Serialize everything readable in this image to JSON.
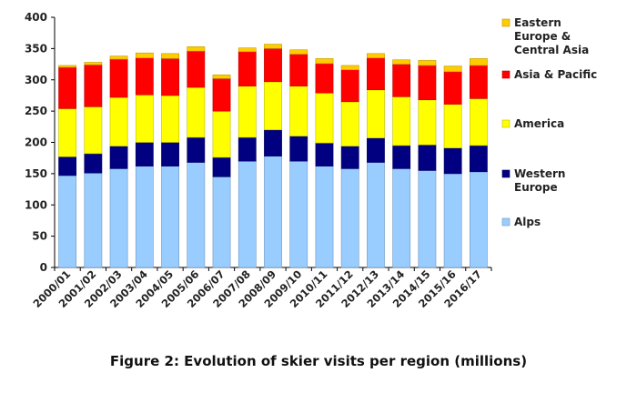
{
  "figure": {
    "caption": "Figure 2: Evolution of skier visits per region (millions)"
  },
  "chart_data": {
    "type": "bar",
    "stacked": true,
    "categories": [
      "2000/01",
      "2001/02",
      "2002/03",
      "2003/04",
      "2004/05",
      "2005/06",
      "2006/07",
      "2007/08",
      "2008/09",
      "2009/10",
      "2010/11",
      "2011/12",
      "2012/13",
      "2013/14",
      "2014/15",
      "2015/16",
      "2016/17"
    ],
    "series": [
      {
        "name": "Alps",
        "color": "#99ccff",
        "values": [
          147,
          151,
          158,
          162,
          162,
          168,
          145,
          170,
          178,
          170,
          162,
          158,
          168,
          158,
          155,
          150,
          153
        ]
      },
      {
        "name": "Western Europe",
        "color": "#000080",
        "values": [
          30,
          31,
          36,
          38,
          38,
          40,
          31,
          38,
          42,
          40,
          37,
          36,
          39,
          37,
          41,
          41,
          42
        ]
      },
      {
        "name": "America",
        "color": "#ffff00",
        "values": [
          77,
          75,
          78,
          76,
          75,
          80,
          74,
          82,
          77,
          80,
          80,
          71,
          77,
          78,
          72,
          70,
          75
        ]
      },
      {
        "name": "Asia & Pacific",
        "color": "#ff0000",
        "values": [
          66,
          67,
          61,
          59,
          59,
          58,
          52,
          55,
          53,
          51,
          47,
          51,
          51,
          52,
          55,
          52,
          53
        ]
      },
      {
        "name": "Eastern Europe & Central Asia",
        "color": "#ffcc00",
        "values": [
          3,
          4,
          5,
          8,
          8,
          7,
          6,
          6,
          7,
          7,
          8,
          7,
          7,
          7,
          8,
          9,
          11
        ]
      }
    ],
    "yticks": [
      "0",
      "50",
      "100",
      "150",
      "200",
      "250",
      "300",
      "350",
      "400"
    ],
    "ylim": [
      0,
      400
    ],
    "grid": false,
    "legend_position": "right",
    "legend_order": [
      "Eastern Europe & Central Asia",
      "Asia & Pacific",
      "America",
      "Western Europe",
      "Alps"
    ]
  }
}
